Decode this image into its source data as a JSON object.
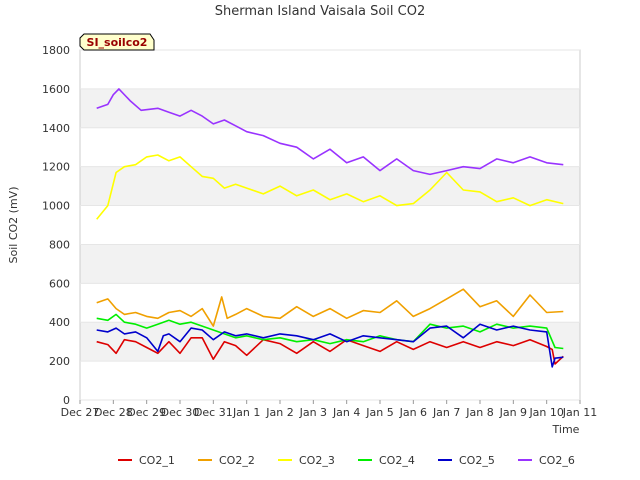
{
  "chart_data": {
    "type": "line",
    "title": "Sherman Island Vaisala Soil CO2",
    "xlabel": "Time",
    "ylabel": "Soil CO2 (mV)",
    "badge": "SI_soilco2",
    "ylim": [
      0,
      1800
    ],
    "yticks": [
      0,
      200,
      400,
      600,
      800,
      1000,
      1200,
      1400,
      1600,
      1800
    ],
    "xlim": [
      "2021-12-27",
      "2022-01-11"
    ],
    "xticks": [
      "Dec 27",
      "Dec 28",
      "Dec 29",
      "Dec 30",
      "Dec 31",
      "Jan 1",
      "Jan 2",
      "Jan 3",
      "Jan 4",
      "Jan 5",
      "Jan 6",
      "Jan 7",
      "Jan 8",
      "Jan 9",
      "Jan 10",
      "Jan 11"
    ],
    "grid": "horizontal bands",
    "legend_position": "bottom",
    "series": [
      {
        "name": "CO2_1",
        "color": "#dd0000",
        "x": [
          "2021-12-27T12:00",
          "2021-12-27T20:00",
          "2021-12-28T02:00",
          "2021-12-28T08:00",
          "2021-12-28T16:00",
          "2021-12-29T00:00",
          "2021-12-29T08:00",
          "2021-12-29T16:00",
          "2021-12-30T00:00",
          "2021-12-30T08:00",
          "2021-12-30T16:00",
          "2021-12-31T00:00",
          "2021-12-31T08:00",
          "2021-12-31T16:00",
          "2022-01-01T00:00",
          "2022-01-01T12:00",
          "2022-01-02T00:00",
          "2022-01-02T12:00",
          "2022-01-03T00:00",
          "2022-01-03T12:00",
          "2022-01-04T00:00",
          "2022-01-04T12:00",
          "2022-01-05T00:00",
          "2022-01-05T12:00",
          "2022-01-06T00:00",
          "2022-01-06T12:00",
          "2022-01-07T00:00",
          "2022-01-07T12:00",
          "2022-01-08T00:00",
          "2022-01-08T12:00",
          "2022-01-09T00:00",
          "2022-01-09T12:00",
          "2022-01-10T00:00",
          "2022-01-10T04:00",
          "2022-01-10T06:00",
          "2022-01-10T12:00"
        ],
        "y": [
          300,
          285,
          240,
          310,
          300,
          270,
          240,
          300,
          240,
          320,
          320,
          210,
          300,
          280,
          230,
          310,
          290,
          240,
          300,
          250,
          310,
          280,
          250,
          300,
          260,
          300,
          270,
          300,
          270,
          300,
          280,
          310,
          275,
          260,
          185,
          225
        ]
      },
      {
        "name": "CO2_2",
        "color": "#f0a000",
        "x": [
          "2021-12-27T12:00",
          "2021-12-27T20:00",
          "2021-12-28T02:00",
          "2021-12-28T08:00",
          "2021-12-28T16:00",
          "2021-12-29T00:00",
          "2021-12-29T08:00",
          "2021-12-29T16:00",
          "2021-12-30T00:00",
          "2021-12-30T08:00",
          "2021-12-30T16:00",
          "2021-12-31T00:00",
          "2021-12-31T06:00",
          "2021-12-31T10:00",
          "2021-12-31T16:00",
          "2022-01-01T00:00",
          "2022-01-01T12:00",
          "2022-01-02T00:00",
          "2022-01-02T12:00",
          "2022-01-03T00:00",
          "2022-01-03T12:00",
          "2022-01-04T00:00",
          "2022-01-04T12:00",
          "2022-01-05T00:00",
          "2022-01-05T12:00",
          "2022-01-06T00:00",
          "2022-01-06T12:00",
          "2022-01-07T00:00",
          "2022-01-07T12:00",
          "2022-01-08T00:00",
          "2022-01-08T12:00",
          "2022-01-09T00:00",
          "2022-01-09T12:00",
          "2022-01-10T00:00",
          "2022-01-10T12:00"
        ],
        "y": [
          500,
          520,
          470,
          440,
          450,
          430,
          420,
          450,
          460,
          430,
          470,
          380,
          530,
          420,
          440,
          470,
          430,
          420,
          480,
          430,
          470,
          420,
          460,
          450,
          510,
          430,
          470,
          520,
          570,
          480,
          510,
          430,
          540,
          450,
          455
        ]
      },
      {
        "name": "CO2_3",
        "color": "#ffff00",
        "x": [
          "2021-12-27T12:00",
          "2021-12-27T20:00",
          "2021-12-28T02:00",
          "2021-12-28T08:00",
          "2021-12-28T16:00",
          "2021-12-29T00:00",
          "2021-12-29T08:00",
          "2021-12-29T16:00",
          "2021-12-30T00:00",
          "2021-12-30T08:00",
          "2021-12-30T16:00",
          "2021-12-31T00:00",
          "2021-12-31T08:00",
          "2021-12-31T16:00",
          "2022-01-01T00:00",
          "2022-01-01T12:00",
          "2022-01-02T00:00",
          "2022-01-02T12:00",
          "2022-01-03T00:00",
          "2022-01-03T12:00",
          "2022-01-04T00:00",
          "2022-01-04T12:00",
          "2022-01-05T00:00",
          "2022-01-05T12:00",
          "2022-01-06T00:00",
          "2022-01-06T12:00",
          "2022-01-07T00:00",
          "2022-01-07T12:00",
          "2022-01-08T00:00",
          "2022-01-08T12:00",
          "2022-01-09T00:00",
          "2022-01-09T12:00",
          "2022-01-10T00:00",
          "2022-01-10T12:00"
        ],
        "y": [
          930,
          1000,
          1170,
          1200,
          1210,
          1250,
          1260,
          1230,
          1250,
          1200,
          1150,
          1140,
          1090,
          1110,
          1090,
          1060,
          1100,
          1050,
          1080,
          1030,
          1060,
          1020,
          1050,
          1000,
          1010,
          1080,
          1170,
          1080,
          1070,
          1020,
          1040,
          1000,
          1030,
          1010
        ]
      },
      {
        "name": "CO2_4",
        "color": "#00ee00",
        "x": [
          "2021-12-27T12:00",
          "2021-12-27T20:00",
          "2021-12-28T02:00",
          "2021-12-28T08:00",
          "2021-12-28T16:00",
          "2021-12-29T00:00",
          "2021-12-29T08:00",
          "2021-12-29T16:00",
          "2021-12-30T00:00",
          "2021-12-30T08:00",
          "2021-12-30T16:00",
          "2021-12-31T00:00",
          "2021-12-31T08:00",
          "2021-12-31T16:00",
          "2022-01-01T00:00",
          "2022-01-01T12:00",
          "2022-01-02T00:00",
          "2022-01-02T12:00",
          "2022-01-03T00:00",
          "2022-01-03T12:00",
          "2022-01-04T00:00",
          "2022-01-04T12:00",
          "2022-01-05T00:00",
          "2022-01-05T12:00",
          "2022-01-06T00:00",
          "2022-01-06T12:00",
          "2022-01-07T00:00",
          "2022-01-07T12:00",
          "2022-01-08T00:00",
          "2022-01-08T12:00",
          "2022-01-09T00:00",
          "2022-01-09T12:00",
          "2022-01-10T00:00",
          "2022-01-10T06:00",
          "2022-01-10T12:00"
        ],
        "y": [
          420,
          410,
          440,
          400,
          390,
          370,
          390,
          410,
          390,
          400,
          380,
          360,
          340,
          320,
          330,
          310,
          320,
          300,
          310,
          290,
          310,
          300,
          330,
          310,
          300,
          390,
          370,
          380,
          350,
          390,
          370,
          380,
          370,
          270,
          265
        ]
      },
      {
        "name": "CO2_5",
        "color": "#0000cc",
        "x": [
          "2021-12-27T12:00",
          "2021-12-27T20:00",
          "2021-12-28T02:00",
          "2021-12-28T08:00",
          "2021-12-28T16:00",
          "2021-12-29T00:00",
          "2021-12-29T08:00",
          "2021-12-29T12:00",
          "2021-12-29T16:00",
          "2021-12-30T00:00",
          "2021-12-30T08:00",
          "2021-12-30T16:00",
          "2021-12-31T00:00",
          "2021-12-31T08:00",
          "2021-12-31T16:00",
          "2022-01-01T00:00",
          "2022-01-01T12:00",
          "2022-01-02T00:00",
          "2022-01-02T12:00",
          "2022-01-03T00:00",
          "2022-01-03T12:00",
          "2022-01-04T00:00",
          "2022-01-04T12:00",
          "2022-01-05T00:00",
          "2022-01-05T12:00",
          "2022-01-06T00:00",
          "2022-01-06T12:00",
          "2022-01-07T00:00",
          "2022-01-07T12:00",
          "2022-01-08T00:00",
          "2022-01-08T12:00",
          "2022-01-09T00:00",
          "2022-01-09T12:00",
          "2022-01-10T00:00",
          "2022-01-10T04:00",
          "2022-01-10T06:00",
          "2022-01-10T12:00"
        ],
        "y": [
          360,
          350,
          370,
          340,
          350,
          320,
          250,
          330,
          340,
          300,
          370,
          360,
          310,
          350,
          330,
          340,
          320,
          340,
          330,
          310,
          340,
          300,
          330,
          320,
          310,
          300,
          370,
          380,
          320,
          390,
          360,
          380,
          360,
          350,
          170,
          215,
          220
        ]
      },
      {
        "name": "CO2_6",
        "color": "#9933ff",
        "x": [
          "2021-12-27T12:00",
          "2021-12-27T20:00",
          "2021-12-28T00:00",
          "2021-12-28T04:00",
          "2021-12-28T12:00",
          "2021-12-28T20:00",
          "2021-12-29T08:00",
          "2021-12-29T16:00",
          "2021-12-30T00:00",
          "2021-12-30T08:00",
          "2021-12-30T16:00",
          "2021-12-31T00:00",
          "2021-12-31T08:00",
          "2021-12-31T16:00",
          "2022-01-01T00:00",
          "2022-01-01T12:00",
          "2022-01-02T00:00",
          "2022-01-02T12:00",
          "2022-01-03T00:00",
          "2022-01-03T12:00",
          "2022-01-04T00:00",
          "2022-01-04T12:00",
          "2022-01-05T00:00",
          "2022-01-05T12:00",
          "2022-01-06T00:00",
          "2022-01-06T12:00",
          "2022-01-07T00:00",
          "2022-01-07T12:00",
          "2022-01-08T00:00",
          "2022-01-08T12:00",
          "2022-01-09T00:00",
          "2022-01-09T12:00",
          "2022-01-10T00:00",
          "2022-01-10T12:00"
        ],
        "y": [
          1500,
          1520,
          1570,
          1600,
          1540,
          1490,
          1500,
          1480,
          1460,
          1490,
          1460,
          1420,
          1440,
          1410,
          1380,
          1360,
          1320,
          1300,
          1240,
          1290,
          1220,
          1250,
          1180,
          1240,
          1180,
          1160,
          1180,
          1200,
          1190,
          1240,
          1220,
          1250,
          1220,
          1210
        ]
      }
    ]
  }
}
